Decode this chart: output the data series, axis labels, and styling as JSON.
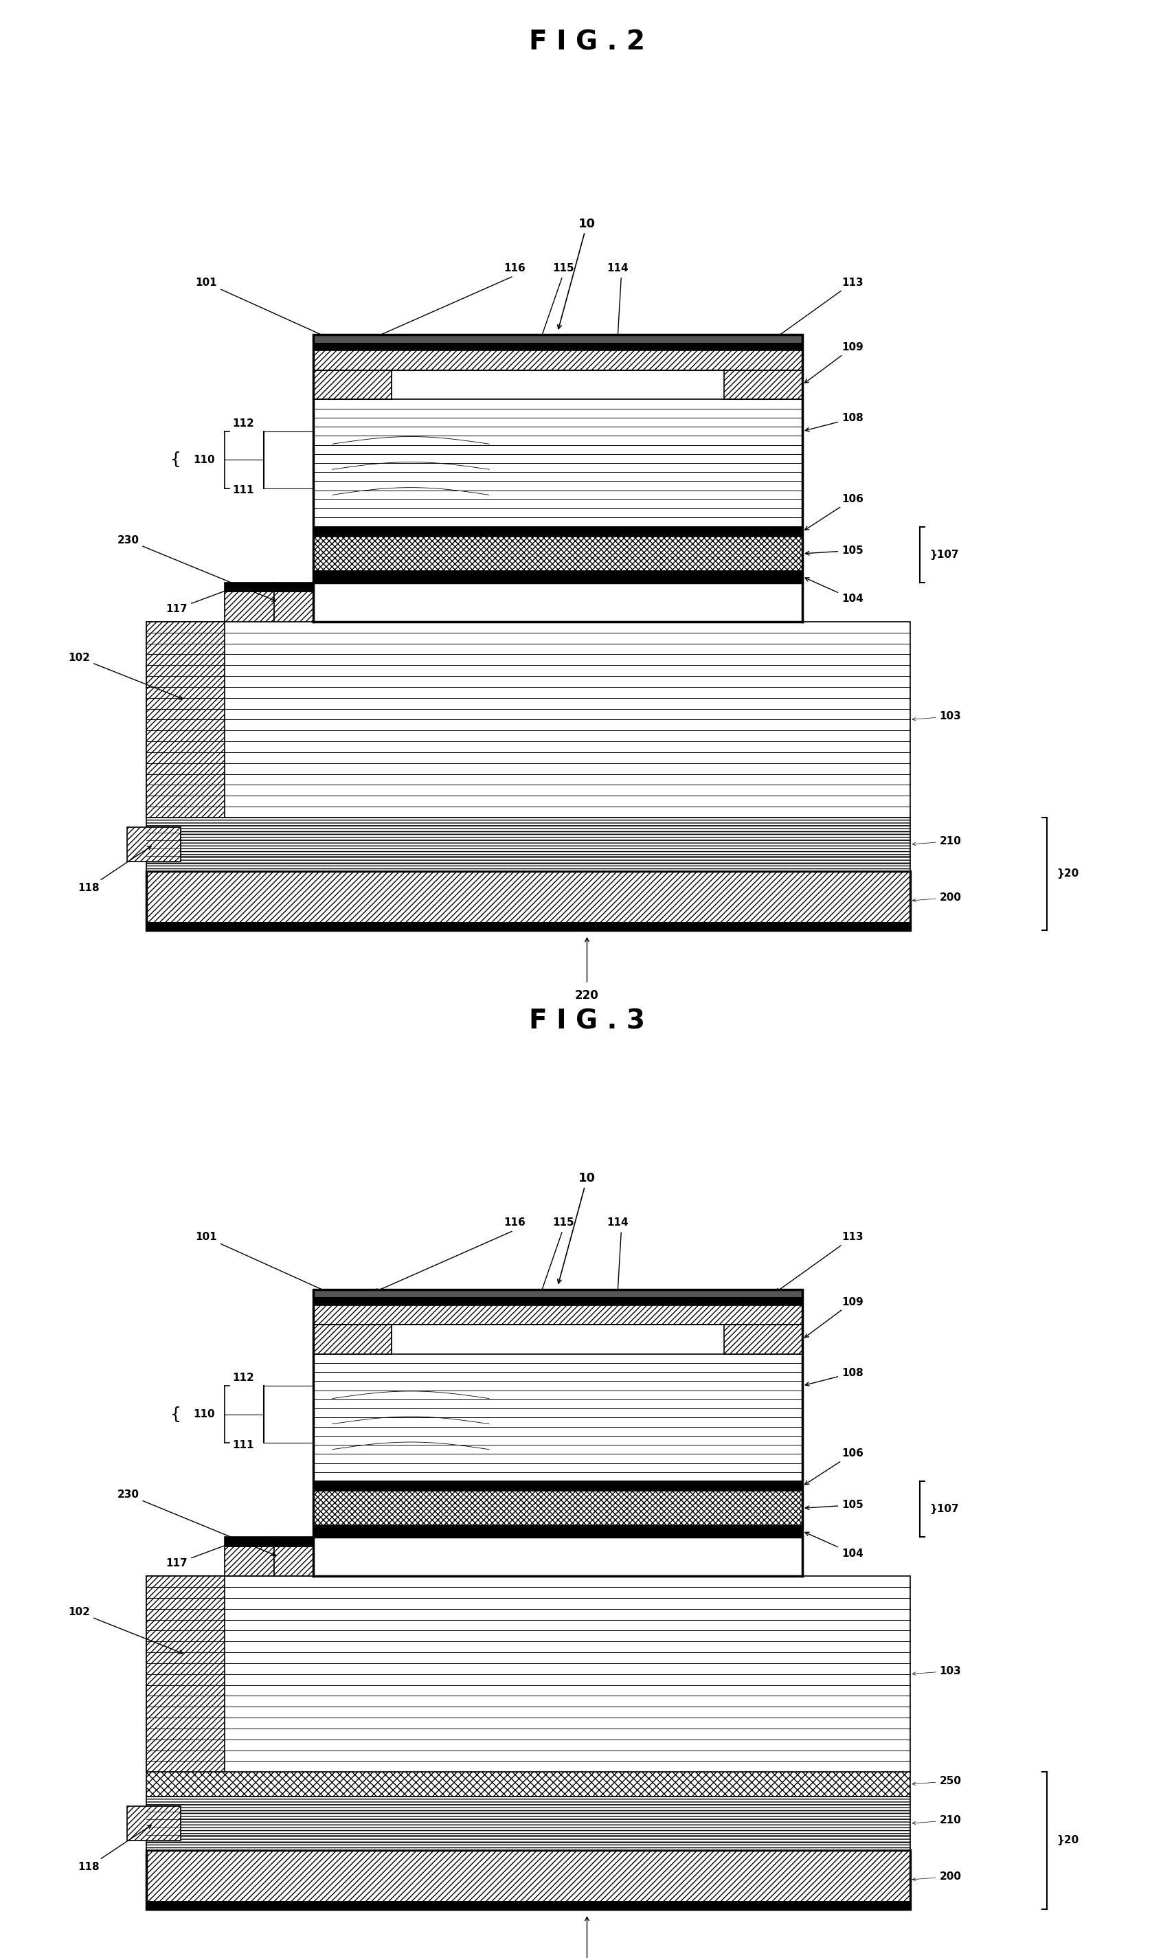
{
  "fig_title1": "F I G . 2",
  "fig_title2": "F I G . 3",
  "background": "#ffffff",
  "lw": 1.2,
  "lw_thick": 2.5,
  "fs_title": 28,
  "fs_label": 13,
  "fs_small": 11
}
